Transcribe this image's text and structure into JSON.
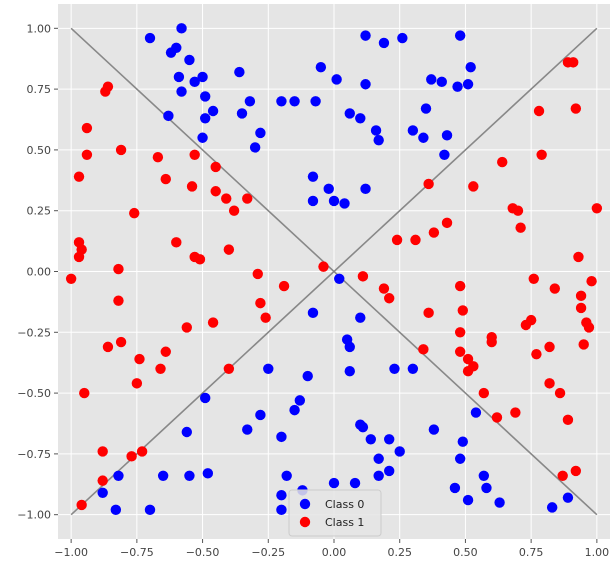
{
  "chart_data": {
    "type": "scatter",
    "title": "",
    "xlabel": "",
    "ylabel": "",
    "xlim": [
      -1.05,
      1.05
    ],
    "ylim": [
      -1.1,
      1.1
    ],
    "xticks": [
      -1.0,
      -0.75,
      -0.5,
      -0.25,
      0.0,
      0.25,
      0.5,
      0.75,
      1.0
    ],
    "xtick_labels": [
      "−1.00",
      "−0.75",
      "−0.50",
      "−0.25",
      "0.00",
      "0.25",
      "0.50",
      "0.75",
      "1.00"
    ],
    "yticks": [
      -1.0,
      -0.75,
      -0.5,
      -0.25,
      0.0,
      0.25,
      0.5,
      0.75,
      1.0
    ],
    "ytick_labels": [
      "−1.00",
      "−0.75",
      "−0.50",
      "−0.25",
      "0.00",
      "0.25",
      "0.50",
      "0.75",
      "1.00"
    ],
    "grid": true,
    "background": "#e5e5e5",
    "grid_color": "#ffffff",
    "legend_position": "bottom-center",
    "reference_lines": [
      {
        "x": [
          -1.0,
          1.0
        ],
        "y": [
          -1.0,
          1.0
        ],
        "color": "#888888"
      },
      {
        "x": [
          -1.0,
          1.0
        ],
        "y": [
          1.0,
          -1.0
        ],
        "color": "#888888"
      }
    ],
    "series": [
      {
        "name": "Class 0",
        "color": "#0000ff",
        "points": [
          [
            -0.7,
            0.96
          ],
          [
            -0.58,
            1.0
          ],
          [
            -0.62,
            0.9
          ],
          [
            -0.6,
            0.92
          ],
          [
            -0.55,
            0.87
          ],
          [
            -0.59,
            0.8
          ],
          [
            -0.53,
            0.78
          ],
          [
            -0.5,
            0.8
          ],
          [
            -0.58,
            0.74
          ],
          [
            -0.49,
            0.72
          ],
          [
            -0.46,
            0.66
          ],
          [
            -0.49,
            0.63
          ],
          [
            -0.5,
            0.55
          ],
          [
            -0.63,
            0.64
          ],
          [
            -0.36,
            0.82
          ],
          [
            -0.35,
            0.65
          ],
          [
            -0.32,
            0.7
          ],
          [
            -0.28,
            0.57
          ],
          [
            -0.3,
            0.51
          ],
          [
            -0.2,
            0.7
          ],
          [
            -0.15,
            0.7
          ],
          [
            -0.07,
            0.7
          ],
          [
            -0.05,
            0.84
          ],
          [
            0.01,
            0.79
          ],
          [
            0.06,
            0.65
          ],
          [
            0.1,
            0.63
          ],
          [
            0.12,
            0.77
          ],
          [
            0.12,
            0.97
          ],
          [
            0.19,
            0.94
          ],
          [
            0.26,
            0.96
          ],
          [
            0.16,
            0.58
          ],
          [
            0.17,
            0.54
          ],
          [
            0.3,
            0.58
          ],
          [
            0.34,
            0.55
          ],
          [
            0.35,
            0.67
          ],
          [
            0.37,
            0.79
          ],
          [
            0.41,
            0.78
          ],
          [
            0.42,
            0.48
          ],
          [
            0.43,
            0.56
          ],
          [
            0.47,
            0.76
          ],
          [
            0.48,
            0.97
          ],
          [
            0.51,
            0.77
          ],
          [
            0.52,
            0.84
          ],
          [
            -0.08,
            0.39
          ],
          [
            -0.02,
            0.34
          ],
          [
            0.0,
            0.29
          ],
          [
            0.04,
            0.28
          ],
          [
            0.12,
            0.34
          ],
          [
            -0.08,
            0.29
          ],
          [
            0.02,
            -0.03
          ],
          [
            -0.08,
            -0.17
          ],
          [
            0.05,
            -0.28
          ],
          [
            0.06,
            -0.31
          ],
          [
            0.1,
            -0.19
          ],
          [
            0.06,
            -0.41
          ],
          [
            0.1,
            -0.63
          ],
          [
            0.11,
            -0.64
          ],
          [
            0.14,
            -0.69
          ],
          [
            0.17,
            -0.77
          ],
          [
            0.17,
            -0.84
          ],
          [
            0.21,
            -0.69
          ],
          [
            0.21,
            -0.82
          ],
          [
            0.25,
            -0.74
          ],
          [
            0.23,
            -0.4
          ],
          [
            0.3,
            -0.4
          ],
          [
            0.38,
            -0.65
          ],
          [
            0.46,
            -0.89
          ],
          [
            0.48,
            -0.77
          ],
          [
            0.49,
            -0.7
          ],
          [
            0.51,
            -0.94
          ],
          [
            0.54,
            -0.58
          ],
          [
            0.57,
            -0.84
          ],
          [
            0.58,
            -0.89
          ],
          [
            0.63,
            -0.95
          ],
          [
            0.83,
            -0.97
          ],
          [
            0.89,
            -0.93
          ],
          [
            -0.1,
            -0.43
          ],
          [
            -0.13,
            -0.53
          ],
          [
            -0.15,
            -0.57
          ],
          [
            -0.12,
            -0.9
          ],
          [
            -0.18,
            -0.84
          ],
          [
            -0.2,
            -0.92
          ],
          [
            -0.2,
            -0.98
          ],
          [
            -0.2,
            -0.68
          ],
          [
            -0.28,
            -0.59
          ],
          [
            -0.25,
            -0.4
          ],
          [
            -0.33,
            -0.65
          ],
          [
            -0.49,
            -0.52
          ],
          [
            -0.56,
            -0.66
          ],
          [
            -0.55,
            -0.84
          ],
          [
            -0.48,
            -0.83
          ],
          [
            -0.65,
            -0.84
          ],
          [
            -0.7,
            -0.98
          ],
          [
            -0.82,
            -0.84
          ],
          [
            -0.83,
            -0.98
          ],
          [
            -0.88,
            -0.91
          ],
          [
            0.0,
            -0.87
          ],
          [
            0.08,
            -0.87
          ]
        ]
      },
      {
        "name": "Class 1",
        "color": "#ff0000",
        "points": [
          [
            -0.86,
            0.76
          ],
          [
            -0.87,
            0.74
          ],
          [
            -0.94,
            0.59
          ],
          [
            -0.94,
            0.48
          ],
          [
            -0.97,
            0.39
          ],
          [
            -0.81,
            0.5
          ],
          [
            -0.67,
            0.47
          ],
          [
            -0.64,
            0.38
          ],
          [
            -0.54,
            0.35
          ],
          [
            -0.53,
            0.48
          ],
          [
            -0.45,
            0.43
          ],
          [
            -0.45,
            0.33
          ],
          [
            -0.41,
            0.3
          ],
          [
            -0.38,
            0.25
          ],
          [
            -0.33,
            0.3
          ],
          [
            -0.4,
            0.09
          ],
          [
            -0.76,
            0.24
          ],
          [
            -0.6,
            0.12
          ],
          [
            -0.53,
            0.06
          ],
          [
            -0.51,
            0.05
          ],
          [
            -0.97,
            0.12
          ],
          [
            -0.96,
            0.09
          ],
          [
            -0.97,
            0.06
          ],
          [
            -1.0,
            -0.03
          ],
          [
            -0.82,
            0.01
          ],
          [
            -0.82,
            -0.12
          ],
          [
            -0.81,
            -0.29
          ],
          [
            -0.86,
            -0.31
          ],
          [
            -0.74,
            -0.36
          ],
          [
            -0.75,
            -0.46
          ],
          [
            -0.64,
            -0.33
          ],
          [
            -0.66,
            -0.4
          ],
          [
            -0.56,
            -0.23
          ],
          [
            -0.46,
            -0.21
          ],
          [
            -0.4,
            -0.4
          ],
          [
            -0.95,
            -0.5
          ],
          [
            -0.88,
            -0.74
          ],
          [
            -0.73,
            -0.74
          ],
          [
            -0.77,
            -0.76
          ],
          [
            -0.88,
            -0.86
          ],
          [
            -0.96,
            -0.96
          ],
          [
            -0.29,
            -0.01
          ],
          [
            -0.28,
            -0.13
          ],
          [
            -0.26,
            -0.19
          ],
          [
            -0.19,
            -0.06
          ],
          [
            -0.04,
            0.02
          ],
          [
            0.11,
            -0.02
          ],
          [
            0.19,
            -0.07
          ],
          [
            0.21,
            -0.11
          ],
          [
            0.24,
            0.13
          ],
          [
            0.31,
            0.13
          ],
          [
            0.38,
            0.16
          ],
          [
            0.36,
            0.36
          ],
          [
            0.43,
            0.2
          ],
          [
            0.53,
            0.35
          ],
          [
            0.36,
            -0.17
          ],
          [
            0.34,
            -0.32
          ],
          [
            0.48,
            -0.06
          ],
          [
            0.48,
            -0.25
          ],
          [
            0.49,
            -0.16
          ],
          [
            0.48,
            -0.33
          ],
          [
            0.51,
            -0.36
          ],
          [
            0.51,
            -0.41
          ],
          [
            0.53,
            -0.39
          ],
          [
            0.57,
            -0.5
          ],
          [
            0.6,
            -0.27
          ],
          [
            0.6,
            -0.29
          ],
          [
            0.62,
            -0.6
          ],
          [
            0.64,
            0.45
          ],
          [
            0.68,
            0.26
          ],
          [
            0.7,
            0.25
          ],
          [
            0.71,
            0.18
          ],
          [
            0.73,
            -0.22
          ],
          [
            0.75,
            -0.2
          ],
          [
            0.76,
            -0.03
          ],
          [
            0.77,
            -0.34
          ],
          [
            0.78,
            0.66
          ],
          [
            0.79,
            0.48
          ],
          [
            0.82,
            -0.31
          ],
          [
            0.82,
            -0.46
          ],
          [
            0.84,
            -0.07
          ],
          [
            0.86,
            -0.5
          ],
          [
            0.87,
            -0.84
          ],
          [
            0.89,
            -0.61
          ],
          [
            0.89,
            0.86
          ],
          [
            0.91,
            0.86
          ],
          [
            0.92,
            0.67
          ],
          [
            0.93,
            0.06
          ],
          [
            0.94,
            -0.1
          ],
          [
            0.94,
            -0.15
          ],
          [
            0.95,
            -0.3
          ],
          [
            0.96,
            -0.21
          ],
          [
            0.97,
            -0.23
          ],
          [
            0.98,
            -0.04
          ],
          [
            1.0,
            0.26
          ],
          [
            0.92,
            -0.82
          ],
          [
            0.69,
            -0.58
          ]
        ]
      }
    ]
  }
}
